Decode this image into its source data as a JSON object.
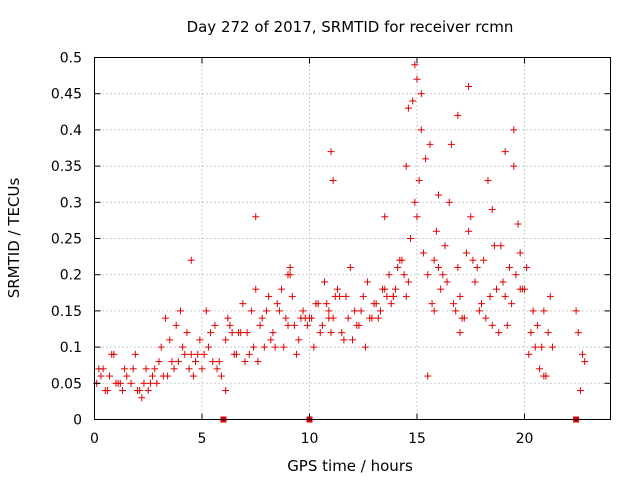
{
  "chart_data": {
    "type": "scatter",
    "title": "Day 272 of 2017, SRMTID for receiver rcmn",
    "xlabel": "GPS time / hours",
    "ylabel": "SRMTID / TECUs",
    "xlim": [
      0,
      24
    ],
    "ylim": [
      0,
      0.5
    ],
    "grid": true,
    "marker": "+",
    "color": "#e00000",
    "x_ticks": [
      0,
      5,
      10,
      15,
      20
    ],
    "x_tick_labels": [
      "0",
      "5",
      "10",
      "15",
      "20"
    ],
    "y_ticks": [
      0,
      0.05,
      0.1,
      0.15,
      0.2,
      0.25,
      0.3,
      0.35,
      0.4,
      0.45,
      0.5
    ],
    "y_tick_labels": [
      "0",
      "0.05",
      "0.1",
      "0.15",
      "0.2",
      "0.25",
      "0.3",
      "0.35",
      "0.4",
      "0.45",
      "0.5"
    ],
    "gap_markers_x": [
      6.0,
      10.0,
      22.4
    ],
    "series": [
      {
        "name": "SRMTID",
        "x": [
          0.1,
          0.3,
          0.5,
          0.7,
          0.9,
          1.1,
          1.3,
          1.5,
          1.7,
          1.9,
          2.1,
          2.3,
          2.5,
          2.7,
          2.9,
          3.1,
          3.3,
          3.5,
          3.7,
          3.9,
          4.1,
          4.3,
          4.5,
          4.7,
          4.9,
          5.1,
          5.3,
          5.5,
          5.7,
          5.9,
          6.1,
          6.3,
          6.5,
          6.7,
          6.9,
          7.1,
          7.3,
          7.5,
          7.7,
          7.9,
          8.1,
          8.3,
          8.5,
          8.7,
          8.9,
          9.1,
          9.3,
          9.5,
          9.7,
          9.9,
          10.1,
          10.3,
          10.5,
          10.7,
          10.9,
          11.1,
          11.3,
          11.5,
          11.7,
          11.9,
          12.1,
          12.3,
          12.5,
          12.7,
          12.9,
          13.1,
          13.3,
          13.5,
          13.7,
          13.9,
          14.1,
          14.3,
          14.5,
          14.7,
          14.9,
          15.1,
          15.3,
          15.5,
          15.7,
          15.9,
          16.1,
          16.3,
          16.5,
          16.7,
          16.9,
          17.1,
          17.3,
          17.5,
          17.7,
          17.9,
          18.1,
          18.3,
          18.5,
          18.7,
          18.9,
          19.1,
          19.3,
          19.5,
          19.7,
          19.9,
          20.1,
          20.3,
          20.5,
          20.7,
          20.9,
          21.1,
          21.3,
          22.5,
          22.7,
          0.2,
          0.6,
          1.0,
          1.4,
          1.8,
          2.2,
          2.6,
          3.0,
          3.4,
          3.8,
          4.2,
          4.6,
          5.0,
          5.4,
          5.8,
          6.2,
          6.6,
          7.0,
          7.4,
          7.8,
          8.2,
          8.6,
          9.0,
          9.4,
          9.8,
          10.2,
          10.6,
          11.0,
          11.4,
          11.8,
          12.2,
          12.6,
          13.0,
          13.4,
          13.8,
          14.2,
          14.6,
          15.0,
          15.4,
          15.8,
          16.2,
          16.6,
          17.0,
          17.4,
          17.8,
          18.2,
          18.6,
          19.0,
          19.4,
          19.8,
          20.2,
          20.6,
          21.0,
          22.6,
          0.4,
          1.2,
          2.0,
          2.8,
          3.6,
          4.4,
          5.2,
          6.4,
          7.2,
          8.0,
          8.8,
          9.6,
          10.4,
          11.2,
          12.0,
          12.8,
          13.6,
          14.4,
          15.2,
          16.0,
          16.8,
          17.6,
          18.4,
          19.2,
          20.0,
          20.8,
          22.4,
          11.0,
          14.9,
          15.0,
          15.2,
          14.6,
          14.8,
          15.6,
          16.0,
          16.9,
          17.4,
          19.1,
          19.5,
          11.1,
          7.5,
          4.5,
          6.1,
          20.9,
          0.8,
          2.4,
          3.2,
          4.0,
          4.8,
          5.6,
          6.8,
          7.6,
          8.4,
          9.2,
          10.0,
          10.8,
          11.6,
          12.4,
          13.2,
          14.0,
          15.8,
          16.4,
          17.2,
          18.0,
          18.8,
          19.6,
          20.4,
          21.2,
          22.8,
          9.0,
          9.1,
          10.9,
          13.5,
          13.9,
          17.0,
          15.5,
          14.5,
          18.5,
          19.8
        ],
        "y": [
          0.05,
          0.06,
          0.04,
          0.06,
          0.09,
          0.05,
          0.04,
          0.06,
          0.05,
          0.09,
          0.04,
          0.05,
          0.04,
          0.06,
          0.05,
          0.1,
          0.14,
          0.11,
          0.07,
          0.08,
          0.1,
          0.12,
          0.09,
          0.08,
          0.11,
          0.09,
          0.1,
          0.08,
          0.07,
          0.06,
          0.11,
          0.13,
          0.09,
          0.12,
          0.16,
          0.12,
          0.15,
          0.18,
          0.13,
          0.1,
          0.17,
          0.12,
          0.16,
          0.18,
          0.14,
          0.2,
          0.13,
          0.11,
          0.15,
          0.13,
          0.14,
          0.16,
          0.12,
          0.19,
          0.15,
          0.14,
          0.18,
          0.12,
          0.17,
          0.21,
          0.15,
          0.13,
          0.17,
          0.19,
          0.14,
          0.16,
          0.15,
          0.18,
          0.2,
          0.17,
          0.21,
          0.22,
          0.17,
          0.25,
          0.3,
          0.33,
          0.23,
          0.2,
          0.16,
          0.26,
          0.18,
          0.24,
          0.3,
          0.16,
          0.21,
          0.14,
          0.23,
          0.28,
          0.19,
          0.15,
          0.22,
          0.33,
          0.13,
          0.18,
          0.24,
          0.17,
          0.21,
          0.35,
          0.27,
          0.18,
          0.21,
          0.12,
          0.1,
          0.07,
          0.15,
          0.12,
          0.1,
          0.12,
          0.09,
          0.07,
          0.04,
          0.05,
          0.07,
          0.07,
          0.03,
          0.05,
          0.08,
          0.06,
          0.13,
          0.09,
          0.06,
          0.07,
          0.12,
          0.08,
          0.14,
          0.09,
          0.08,
          0.1,
          0.14,
          0.11,
          0.15,
          0.13,
          0.09,
          0.14,
          0.1,
          0.13,
          0.12,
          0.17,
          0.14,
          0.13,
          0.1,
          0.16,
          0.18,
          0.16,
          0.22,
          0.19,
          0.28,
          0.36,
          0.15,
          0.2,
          0.38,
          0.17,
          0.26,
          0.21,
          0.14,
          0.24,
          0.19,
          0.16,
          0.18,
          0.09,
          0.13,
          0.06,
          0.04,
          0.07,
          0.05,
          0.04,
          0.07,
          0.08,
          0.07,
          0.15,
          0.12,
          0.09,
          0.15,
          0.1,
          0.14,
          0.16,
          0.17,
          0.11,
          0.14,
          0.17,
          0.2,
          0.4,
          0.21,
          0.15,
          0.22,
          0.17,
          0.13,
          0.18,
          0.1,
          0.15,
          0.37,
          0.49,
          0.47,
          0.45,
          0.43,
          0.44,
          0.38,
          0.31,
          0.42,
          0.46,
          0.37,
          0.4,
          0.33,
          0.28,
          0.22,
          0.04,
          0.06,
          0.09,
          0.07,
          0.06,
          0.15,
          0.09,
          0.13,
          0.12,
          0.08,
          0.1,
          0.17,
          0.14,
          0.16,
          0.11,
          0.15,
          0.14,
          0.18,
          0.22,
          0.19,
          0.14,
          0.16,
          0.12,
          0.2,
          0.15,
          0.17,
          0.08,
          0.2,
          0.21,
          0.14,
          0.28,
          0.17,
          0.12,
          0.06,
          0.35,
          0.29,
          0.23
        ]
      }
    ]
  }
}
